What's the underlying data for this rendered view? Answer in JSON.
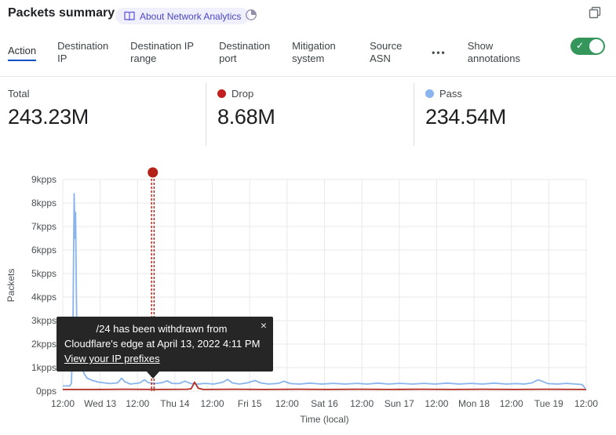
{
  "header": {
    "title": "Packets summary",
    "badge_label": "About Network Analytics"
  },
  "tabs": {
    "items": [
      {
        "label": "Action",
        "active": true
      },
      {
        "label": "Destination IP",
        "active": false
      },
      {
        "label": "Destination IP range",
        "active": false
      },
      {
        "label": "Destination port",
        "active": false
      },
      {
        "label": "Mitigation system",
        "active": false
      },
      {
        "label": "Source ASN",
        "active": false
      }
    ],
    "overflow_label": "•••",
    "annotations_label": "Show annotations",
    "annotations_toggle_on": true,
    "toggle_color": "#34965a",
    "active_tab_underline_color": "#0051c3"
  },
  "stats": [
    {
      "label": "Total",
      "value": "243.23M",
      "dot_color": null
    },
    {
      "label": "Drop",
      "value": "8.68M",
      "dot_color": "#c21e1e"
    },
    {
      "label": "Pass",
      "value": "234.54M",
      "dot_color": "#8ab4ec"
    }
  ],
  "annotation_tooltip": {
    "line1": "/24 has been withdrawn from",
    "line2": "Cloudflare's edge at April 13, 2022 4:11 PM",
    "link_label": "View your IP prefixes",
    "close_glyph": "×"
  },
  "toggle_check_glyph": "✓",
  "chart_data": {
    "type": "line",
    "title": "Packets summary",
    "xlabel": "Time (local)",
    "ylabel": "Packets",
    "x_hours_span": 168,
    "x_tick_labels": [
      "12:00",
      "Wed 13",
      "12:00",
      "Thu 14",
      "12:00",
      "Fri 15",
      "12:00",
      "Sat 16",
      "12:00",
      "Sun 17",
      "12:00",
      "Mon 18",
      "12:00",
      "Tue 19",
      "12:00"
    ],
    "y_tick_labels": [
      "9kpps",
      "8kpps",
      "7kpps",
      "6kpps",
      "5kpps",
      "4kpps",
      "3kpps",
      "2kpps",
      "1kpps",
      "0pps"
    ],
    "ylim": [
      0,
      9
    ],
    "grid": true,
    "legend_position": "top-stats-row",
    "series": [
      {
        "name": "Pass",
        "color": "#8ab4ec",
        "unit": "kpps",
        "points": [
          [
            0,
            0.22
          ],
          [
            2.3,
            0.22
          ],
          [
            2.8,
            0.35
          ],
          [
            3.3,
            3.2
          ],
          [
            3.65,
            8.4
          ],
          [
            3.9,
            6.5
          ],
          [
            4.1,
            7.6
          ],
          [
            4.5,
            2.4
          ],
          [
            5.0,
            1.0
          ],
          [
            5.5,
            1.15
          ],
          [
            6.1,
            1.1
          ],
          [
            6.8,
            0.75
          ],
          [
            7.8,
            0.55
          ],
          [
            9.6,
            0.45
          ],
          [
            11.6,
            0.38
          ],
          [
            15.1,
            0.32
          ],
          [
            17.6,
            0.35
          ],
          [
            18.9,
            0.55
          ],
          [
            19.9,
            0.4
          ],
          [
            21.7,
            0.3
          ],
          [
            24.7,
            0.35
          ],
          [
            26.2,
            0.48
          ],
          [
            27.5,
            0.36
          ],
          [
            29.5,
            0.32
          ],
          [
            32.0,
            0.36
          ],
          [
            33.5,
            0.44
          ],
          [
            35.0,
            0.33
          ],
          [
            37.3,
            0.32
          ],
          [
            39.3,
            0.42
          ],
          [
            41.1,
            0.32
          ],
          [
            43.3,
            0.3
          ],
          [
            45.8,
            0.33
          ],
          [
            48.4,
            0.3
          ],
          [
            51.4,
            0.38
          ],
          [
            52.9,
            0.5
          ],
          [
            54.4,
            0.35
          ],
          [
            56.7,
            0.3
          ],
          [
            59.2,
            0.35
          ],
          [
            61.7,
            0.45
          ],
          [
            63.5,
            0.35
          ],
          [
            66.0,
            0.3
          ],
          [
            69.3,
            0.33
          ],
          [
            71.0,
            0.42
          ],
          [
            73.0,
            0.32
          ],
          [
            76.1,
            0.3
          ],
          [
            79.3,
            0.34
          ],
          [
            83.1,
            0.3
          ],
          [
            86.9,
            0.33
          ],
          [
            90.7,
            0.3
          ],
          [
            94.4,
            0.33
          ],
          [
            97.7,
            0.3
          ],
          [
            101.2,
            0.34
          ],
          [
            104.5,
            0.3
          ],
          [
            108.3,
            0.33
          ],
          [
            112.1,
            0.3
          ],
          [
            115.9,
            0.33
          ],
          [
            119.6,
            0.3
          ],
          [
            123.4,
            0.34
          ],
          [
            127.2,
            0.3
          ],
          [
            131.0,
            0.33
          ],
          [
            134.7,
            0.3
          ],
          [
            138.5,
            0.34
          ],
          [
            142.3,
            0.3
          ],
          [
            145.6,
            0.32
          ],
          [
            148.1,
            0.3
          ],
          [
            150.6,
            0.35
          ],
          [
            152.6,
            0.48
          ],
          [
            153.9,
            0.42
          ],
          [
            155.7,
            0.32
          ],
          [
            158.7,
            0.3
          ],
          [
            161.7,
            0.33
          ],
          [
            164.7,
            0.3
          ],
          [
            166.7,
            0.28
          ],
          [
            167.7,
            0.12
          ]
        ]
      },
      {
        "name": "Drop",
        "color": "#b32a20",
        "unit": "kpps",
        "points": [
          [
            0,
            0.07
          ],
          [
            10,
            0.07
          ],
          [
            20,
            0.08
          ],
          [
            30,
            0.07
          ],
          [
            40,
            0.08
          ],
          [
            41.2,
            0.1
          ],
          [
            42.3,
            0.38
          ],
          [
            43.5,
            0.12
          ],
          [
            45,
            0.07
          ],
          [
            55,
            0.08
          ],
          [
            65,
            0.07
          ],
          [
            75,
            0.08
          ],
          [
            85,
            0.07
          ],
          [
            95,
            0.08
          ],
          [
            105,
            0.07
          ],
          [
            115,
            0.08
          ],
          [
            125,
            0.07
          ],
          [
            135,
            0.08
          ],
          [
            145,
            0.07
          ],
          [
            155,
            0.08
          ],
          [
            168,
            0.07
          ]
        ]
      }
    ],
    "annotation": {
      "x_hours": 28.9,
      "color": "#b32015",
      "event": "IP prefix /24 withdrawn from Cloudflare's edge at April 13, 2022 4:11 PM"
    }
  }
}
